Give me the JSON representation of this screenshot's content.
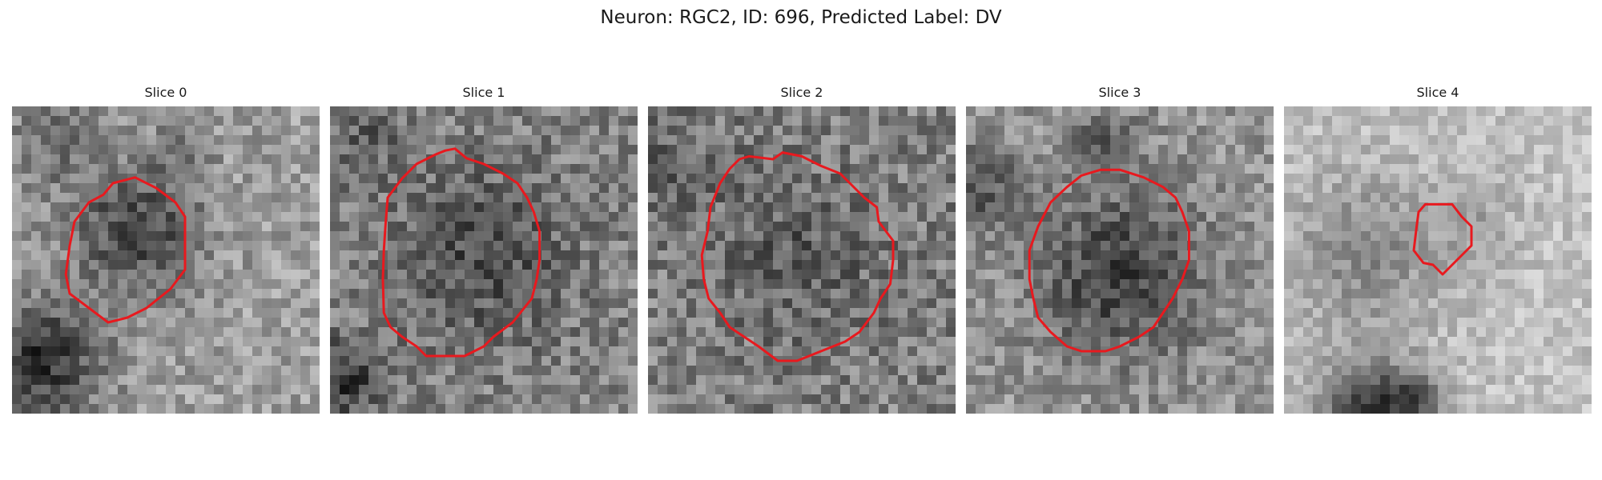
{
  "figure": {
    "title": "Neuron: RGC2, ID: 696, Predicted Label: DV",
    "contour_color": "#e8191e",
    "background_color": "#ffffff",
    "colormap": "grayscale"
  },
  "slices": [
    {
      "title": "Slice 0"
    },
    {
      "title": "Slice 1"
    },
    {
      "title": "Slice 2"
    },
    {
      "title": "Slice 3"
    },
    {
      "title": "Slice 4"
    }
  ]
}
